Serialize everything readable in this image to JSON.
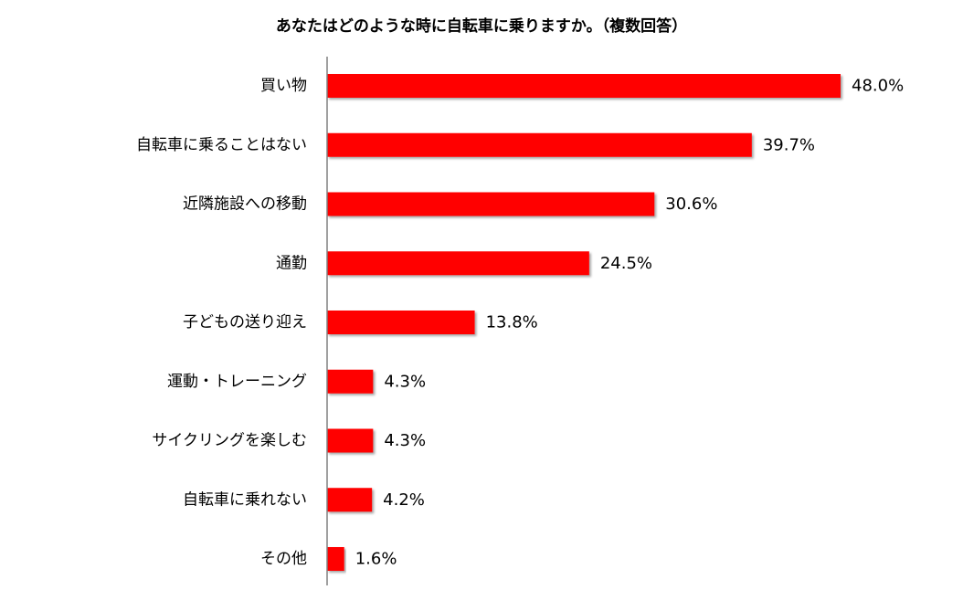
{
  "chart_data": {
    "type": "bar",
    "orientation": "horizontal",
    "title": "あなたはどのような時に自転車に乗りますか。（複数回答）",
    "categories": [
      "買い物",
      "自転車に乗ることはない",
      "近隣施設への移動",
      "通勤",
      "子どもの送り迎え",
      "運動・トレーニング",
      "サイクリングを楽しむ",
      "自転車に乗れない",
      "その他"
    ],
    "values": [
      48.0,
      39.7,
      30.6,
      24.5,
      13.8,
      4.3,
      4.3,
      4.2,
      1.6
    ],
    "value_labels": [
      "48.0%",
      "39.7%",
      "30.6%",
      "24.5%",
      "13.8%",
      "4.3%",
      "4.3%",
      "4.2%",
      "1.6%"
    ],
    "xlim": [
      0,
      48
    ],
    "xlabel": "",
    "ylabel": "",
    "grid": false,
    "legend": "none",
    "bar_color": "#ff0000",
    "axis_color": "#808080"
  }
}
